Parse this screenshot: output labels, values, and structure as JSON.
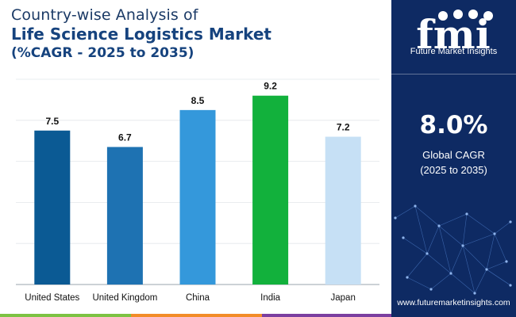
{
  "title": {
    "line1": "Country-wise Analysis of",
    "line2": "Life Science Logistics Market",
    "line3": "(%CAGR - 2025 to 2035)"
  },
  "chart_data": {
    "type": "bar",
    "categories": [
      "United States",
      "United Kingdom",
      "China",
      "India",
      "Japan"
    ],
    "values": [
      7.5,
      6.7,
      8.5,
      9.2,
      7.2
    ],
    "value_labels": [
      "7.5",
      "6.7",
      "8.5",
      "9.2",
      "7.2"
    ],
    "colors": [
      "#0b5a94",
      "#1e72b2",
      "#3498db",
      "#12b13c",
      "#c6e0f5"
    ],
    "ylim": [
      0,
      10
    ],
    "grid": true,
    "legend": "none"
  },
  "side_panel": {
    "logo_text": "fmi",
    "logo_subtitle": "Future Market Insights",
    "global_value": "8.0%",
    "global_label_line1": "Global CAGR",
    "global_label_line2": "(2025 to 2035)",
    "website": "www.futuremarketinsights.com",
    "background": "#0e2a63"
  },
  "stripe_colors": [
    "#7dc243",
    "#f28c28",
    "#7b3fa0"
  ]
}
